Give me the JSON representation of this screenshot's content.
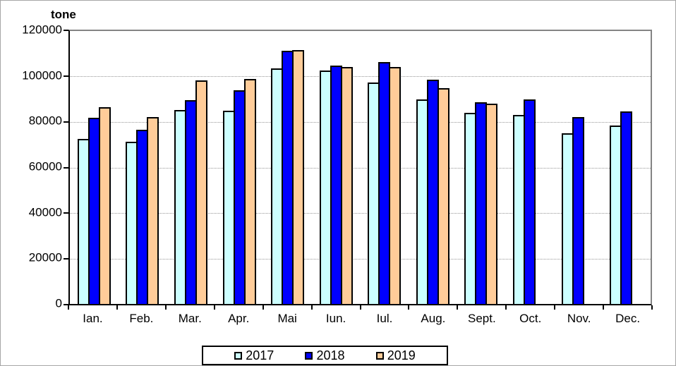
{
  "chart_data": {
    "type": "bar",
    "title": "",
    "ylabel": "tone",
    "xlabel": "",
    "categories": [
      "Ian.",
      "Feb.",
      "Mar.",
      "Apr.",
      "Mai",
      "Iun.",
      "Iul.",
      "Aug.",
      "Sept.",
      "Oct.",
      "Nov.",
      "Dec."
    ],
    "series": [
      {
        "name": "2017",
        "color": "#CCFFFF",
        "values": [
          72600,
          71200,
          85300,
          85000,
          103600,
          102500,
          97300,
          89900,
          84000,
          83100,
          75000,
          78300
        ]
      },
      {
        "name": "2018",
        "color": "#0000FF",
        "values": [
          81900,
          76700,
          89500,
          94100,
          111400,
          104900,
          106500,
          98600,
          88600,
          89900,
          82100,
          84800
        ]
      },
      {
        "name": "2019",
        "color": "#FFCC99",
        "values": [
          86500,
          82200,
          98300,
          98800,
          111700,
          104100,
          104100,
          94800,
          88000,
          null,
          null,
          null
        ]
      }
    ],
    "ylim": [
      0,
      120000
    ],
    "ytick_interval": 20000,
    "yticks": [
      "0",
      "20000",
      "40000",
      "60000",
      "80000",
      "100000",
      "120000"
    ],
    "grid": "horizontal-dotted",
    "legend_position": "bottom"
  },
  "colors": {
    "series_2017": "#CCFFFF",
    "series_2018": "#0000FF",
    "series_2019": "#FFCC99",
    "bar_border": "#000000",
    "gridline": "#969696",
    "plot_border": "#848484",
    "axis": "#000000",
    "background": "#FFFFFF"
  }
}
